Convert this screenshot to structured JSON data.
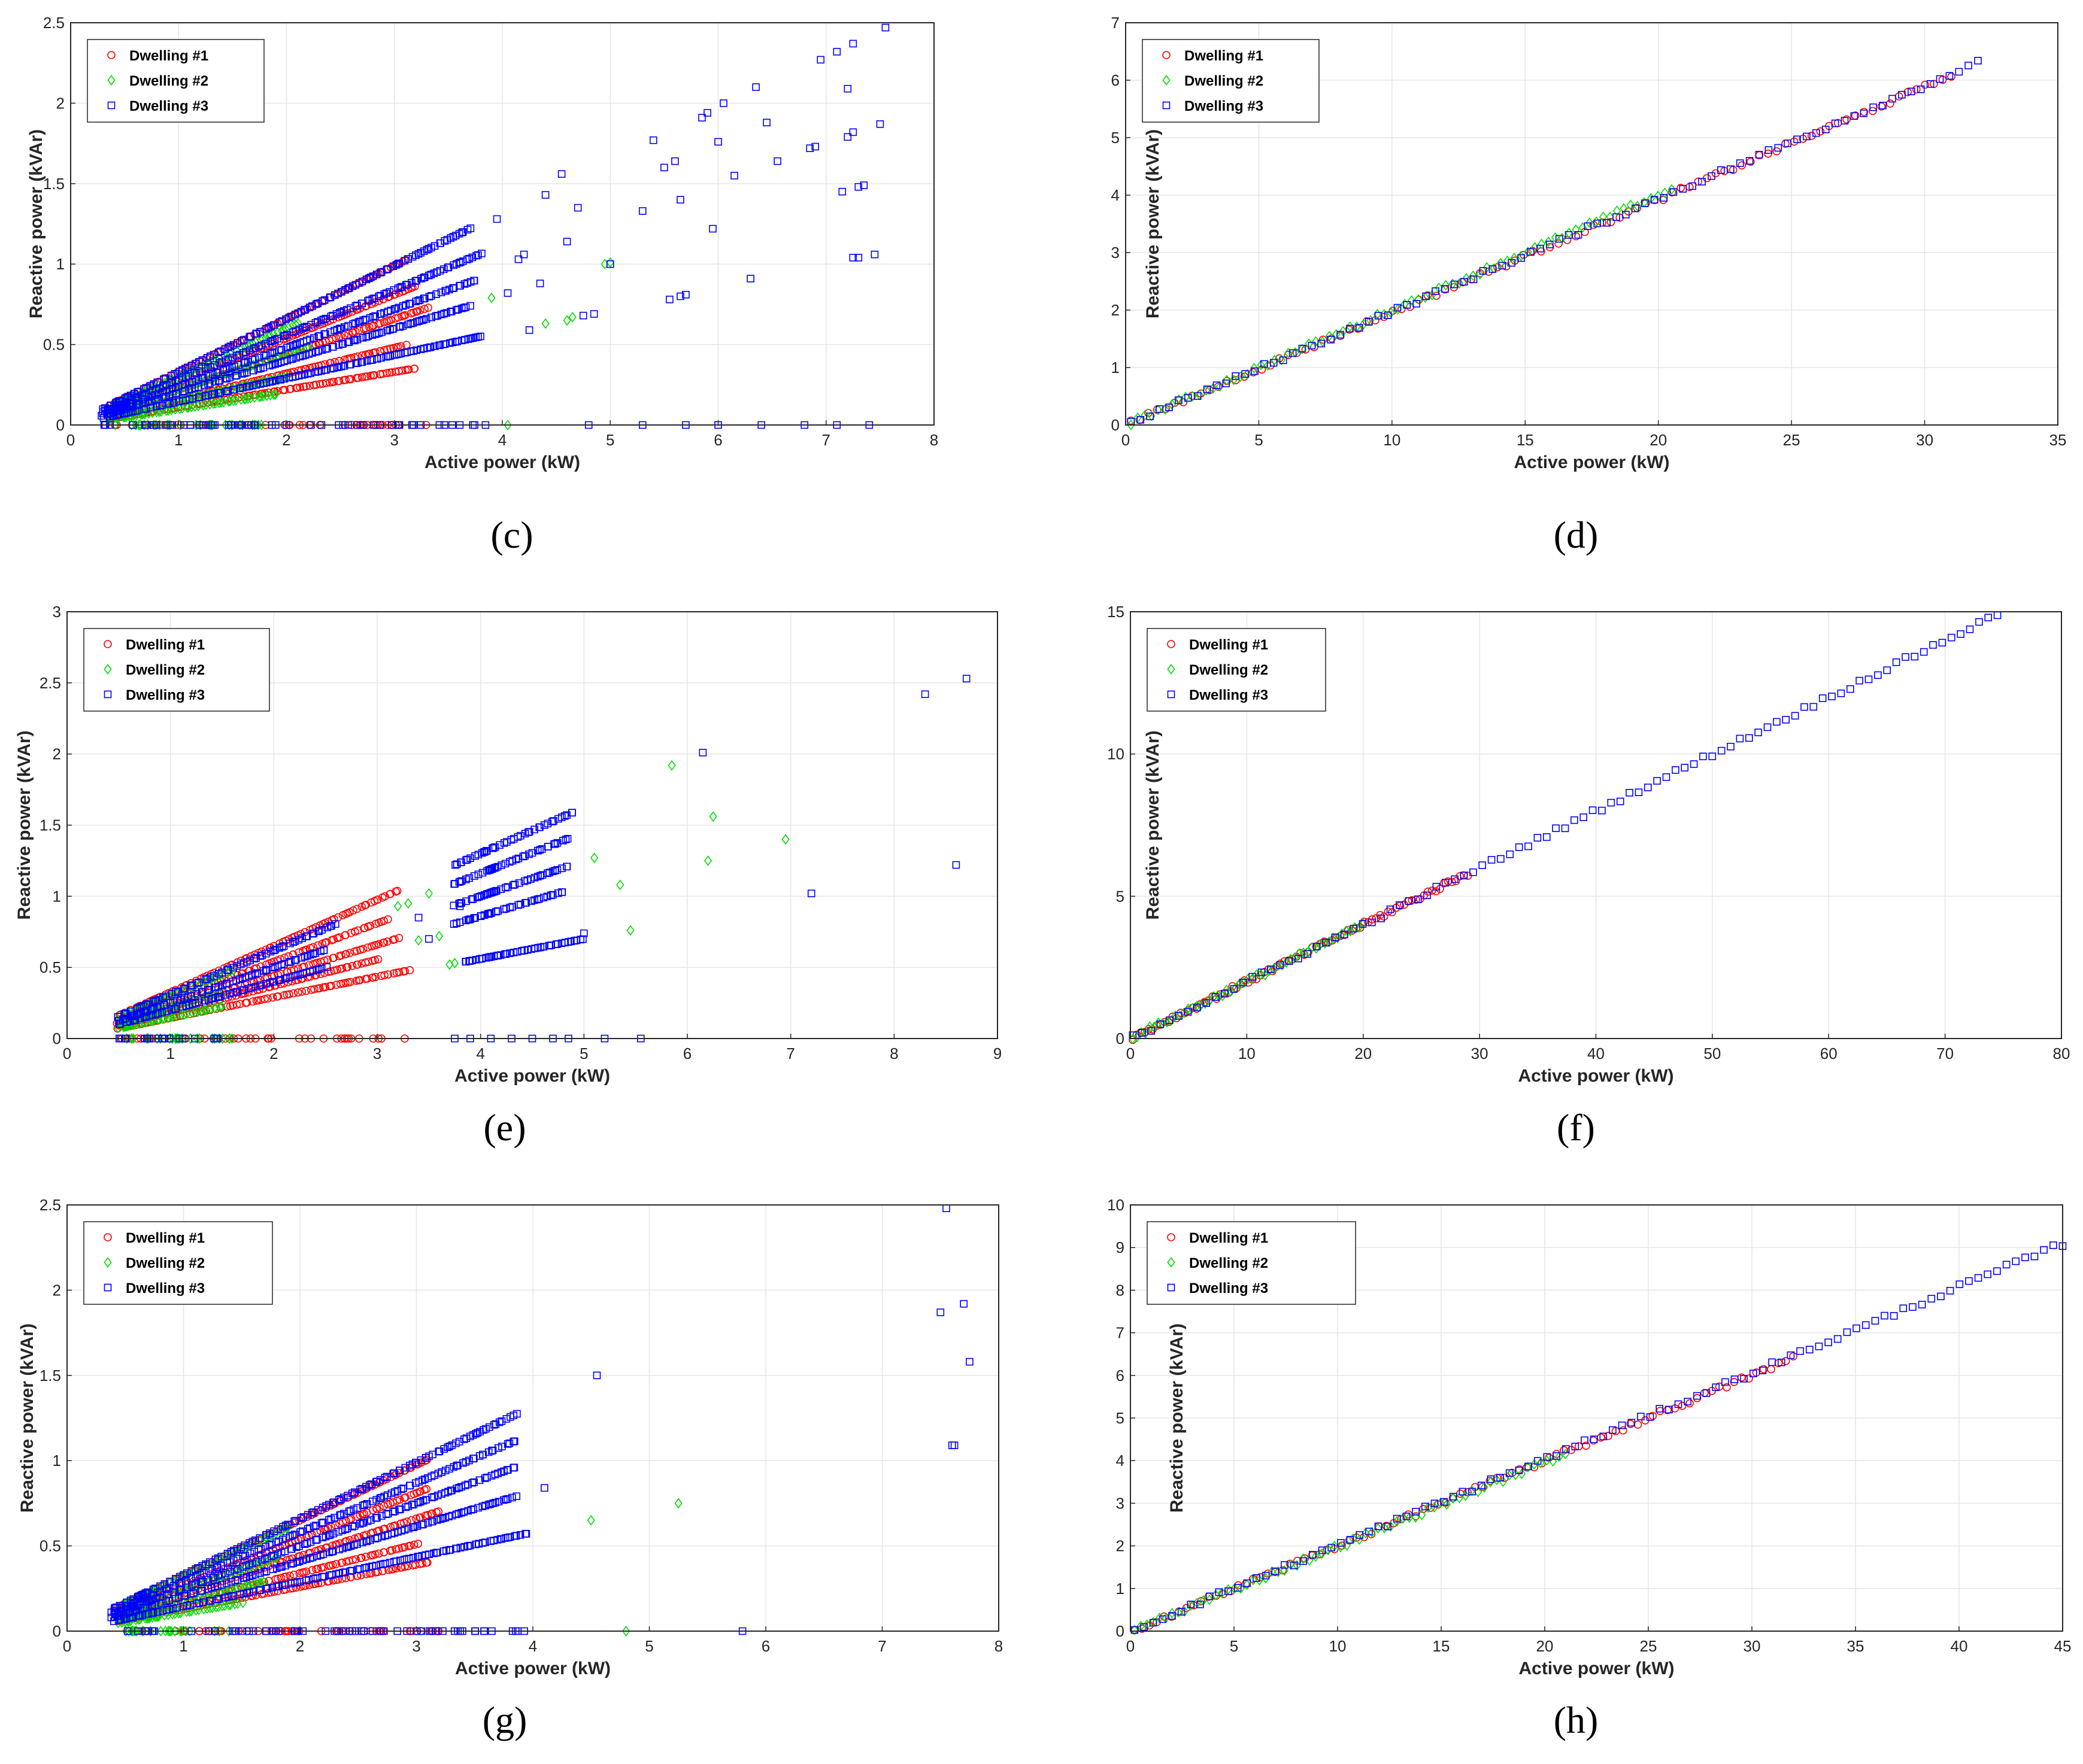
{
  "colors": {
    "s1": "#ff0000",
    "s2": "#00dd00",
    "s3": "#0000ff"
  },
  "chart_data": [
    {
      "id": "c",
      "type": "scatter",
      "panel_label": "(c)",
      "xlim": [
        0,
        8
      ],
      "ylim": [
        0,
        2.5
      ],
      "xticks": [
        "0",
        "1",
        "2",
        "3",
        "4",
        "5",
        "6",
        "7",
        "8"
      ],
      "yticks": [
        "0",
        "0.5",
        "1",
        "1.5",
        "2",
        "2.5"
      ],
      "xlabel": "Active power (kW)",
      "ylabel": "Reactive power (kVAr)",
      "legend": [
        "Dwelling #1",
        "Dwelling #2",
        "Dwelling #3"
      ],
      "legend_position": "top-left",
      "series": [
        {
          "name": "Dwelling #1",
          "rays": [
            {
              "x0": 0.35,
              "x1": 3.1,
              "slope": 0.33
            },
            {
              "x0": 0.35,
              "x1": 3.2,
              "slope": 0.27
            },
            {
              "x0": 0.35,
              "x1": 3.3,
              "slope": 0.22
            },
            {
              "x0": 0.35,
              "x1": 3.1,
              "slope": 0.16
            },
            {
              "x0": 0.35,
              "x1": 3.2,
              "slope": 0.11
            }
          ],
          "zero": {
            "x0": 0.35,
            "x1": 3.3
          },
          "extra": []
        },
        {
          "name": "Dwelling #2",
          "rays": [
            {
              "x0": 0.35,
              "x1": 2.1,
              "slope": 0.3
            },
            {
              "x0": 0.35,
              "x1": 2.2,
              "slope": 0.22
            },
            {
              "x0": 0.35,
              "x1": 2.0,
              "slope": 0.15
            },
            {
              "x0": 0.35,
              "x1": 1.9,
              "slope": 0.1
            }
          ],
          "zero": {
            "x0": 0.35,
            "x1": 1.8
          },
          "extra": [
            [
              3.9,
              0.79
            ],
            [
              4.4,
              0.63
            ],
            [
              4.6,
              0.65
            ],
            [
              4.65,
              0.67
            ],
            [
              4.95,
              1.0
            ],
            [
              5.0,
              1.01
            ],
            [
              4.05,
              0.0
            ]
          ]
        },
        {
          "name": "Dwelling #3",
          "rays": [
            {
              "x0": 0.3,
              "x1": 3.7,
              "slope": 0.33
            },
            {
              "x0": 0.3,
              "x1": 3.8,
              "slope": 0.28
            },
            {
              "x0": 0.3,
              "x1": 3.75,
              "slope": 0.24
            },
            {
              "x0": 0.3,
              "x1": 3.7,
              "slope": 0.2
            },
            {
              "x0": 0.3,
              "x1": 3.8,
              "slope": 0.145
            }
          ],
          "zero": {
            "x0": 0.3,
            "x1": 3.9
          },
          "extra": [
            [
              3.95,
              1.28
            ],
            [
              4.05,
              0.82
            ],
            [
              4.15,
              1.03
            ],
            [
              4.2,
              1.06
            ],
            [
              4.25,
              0.59
            ],
            [
              4.35,
              0.88
            ],
            [
              4.4,
              1.43
            ],
            [
              4.55,
              1.56
            ],
            [
              4.6,
              1.14
            ],
            [
              4.7,
              1.35
            ],
            [
              4.75,
              0.68
            ],
            [
              4.85,
              0.69
            ],
            [
              5.0,
              1.0
            ],
            [
              5.3,
              1.33
            ],
            [
              5.4,
              1.77
            ],
            [
              5.5,
              1.6
            ],
            [
              5.55,
              0.78
            ],
            [
              5.6,
              1.64
            ],
            [
              5.65,
              0.8
            ],
            [
              5.7,
              0.81
            ],
            [
              5.65,
              1.4
            ],
            [
              5.85,
              1.91
            ],
            [
              5.9,
              1.94
            ],
            [
              5.95,
              1.22
            ],
            [
              6.0,
              1.76
            ],
            [
              6.05,
              2.0
            ],
            [
              6.15,
              1.55
            ],
            [
              6.3,
              0.91
            ],
            [
              6.35,
              2.1
            ],
            [
              6.45,
              1.88
            ],
            [
              6.55,
              1.64
            ],
            [
              6.85,
              1.72
            ],
            [
              6.9,
              1.73
            ],
            [
              6.95,
              2.27
            ],
            [
              7.1,
              2.32
            ],
            [
              7.15,
              1.45
            ],
            [
              7.2,
              1.79
            ],
            [
              7.25,
              1.82
            ],
            [
              7.3,
              1.48
            ],
            [
              7.35,
              1.49
            ],
            [
              7.45,
              1.06
            ],
            [
              7.5,
              1.87
            ],
            [
              7.55,
              2.47
            ],
            [
              7.2,
              2.09
            ],
            [
              7.25,
              2.37
            ],
            [
              7.25,
              1.04
            ],
            [
              7.3,
              1.04
            ],
            [
              4.8,
              0.0
            ],
            [
              5.3,
              0.0
            ],
            [
              5.7,
              0.0
            ],
            [
              6.0,
              0.0
            ],
            [
              6.4,
              0.0
            ],
            [
              6.8,
              0.0
            ],
            [
              7.1,
              0.0
            ],
            [
              7.4,
              0.0
            ]
          ]
        }
      ]
    },
    {
      "id": "d",
      "type": "scatter",
      "panel_label": "(d)",
      "xlim": [
        0,
        35
      ],
      "ylim": [
        0,
        7
      ],
      "xticks": [
        "0",
        "5",
        "10",
        "15",
        "20",
        "25",
        "30",
        "35"
      ],
      "yticks": [
        "0",
        "1",
        "2",
        "3",
        "4",
        "5",
        "6",
        "7"
      ],
      "xlabel": "Active power (kW)",
      "ylabel": "Reactive power (kVAr)",
      "legend": [
        "Dwelling #1",
        "Dwelling #2",
        "Dwelling #3"
      ],
      "legend_position": "top-left",
      "series": [
        {
          "name": "Dwelling #1",
          "line": {
            "x0": 0.2,
            "x1": 31,
            "slope": 0.196,
            "n": 95
          },
          "extra": []
        },
        {
          "name": "Dwelling #2",
          "line": {
            "x0": 0.2,
            "x1": 20.5,
            "slope": 0.2,
            "n": 80
          },
          "extra": []
        },
        {
          "name": "Dwelling #3",
          "line": {
            "x0": 0.2,
            "x1": 32,
            "slope": 0.197,
            "n": 90
          },
          "extra": []
        }
      ]
    },
    {
      "id": "e",
      "type": "scatter",
      "panel_label": "(e)",
      "xlim": [
        0,
        9
      ],
      "ylim": [
        0,
        3
      ],
      "xticks": [
        "0",
        "1",
        "2",
        "3",
        "4",
        "5",
        "6",
        "7",
        "8",
        "9"
      ],
      "yticks": [
        "0",
        "0.5",
        "1",
        "1.5",
        "2",
        "2.5",
        "3"
      ],
      "xlabel": "Active power (kW)",
      "ylabel": "Reactive power (kVAr)",
      "legend": [
        "Dwelling #1",
        "Dwelling #2",
        "Dwelling #3"
      ],
      "legend_position": "top-left",
      "series": [
        {
          "name": "Dwelling #1",
          "rays": [
            {
              "x0": 0.5,
              "x1": 3.2,
              "slope": 0.325
            },
            {
              "x0": 0.5,
              "x1": 3.1,
              "slope": 0.27
            },
            {
              "x0": 0.5,
              "x1": 3.2,
              "slope": 0.22
            },
            {
              "x0": 0.5,
              "x1": 3.0,
              "slope": 0.185
            },
            {
              "x0": 0.5,
              "x1": 3.3,
              "slope": 0.145
            }
          ],
          "zero": {
            "x0": 0.5,
            "x1": 3.3
          },
          "extra": []
        },
        {
          "name": "Dwelling #2",
          "rays": [
            {
              "x0": 0.5,
              "x1": 1.6,
              "slope": 0.3
            },
            {
              "x0": 0.5,
              "x1": 1.5,
              "slope": 0.22
            },
            {
              "x0": 0.5,
              "x1": 1.5,
              "slope": 0.15
            }
          ],
          "zero": {
            "x0": 0.5,
            "x1": 1.6
          },
          "extra": [
            [
              3.2,
              0.93
            ],
            [
              3.3,
              0.95
            ],
            [
              3.4,
              0.69
            ],
            [
              3.5,
              1.02
            ],
            [
              3.6,
              0.72
            ],
            [
              3.7,
              0.52
            ],
            [
              3.75,
              0.53
            ],
            [
              5.1,
              1.27
            ],
            [
              5.35,
              1.08
            ],
            [
              5.45,
              0.76
            ],
            [
              5.85,
              1.92
            ],
            [
              6.2,
              1.25
            ],
            [
              6.25,
              1.56
            ],
            [
              6.95,
              1.4
            ]
          ]
        },
        {
          "name": "Dwelling #3",
          "rays": [
            {
              "x0": 0.5,
              "x1": 2.6,
              "slope": 0.31
            },
            {
              "x0": 0.5,
              "x1": 2.5,
              "slope": 0.25
            },
            {
              "x0": 0.5,
              "x1": 2.5,
              "slope": 0.2
            },
            {
              "x0": 3.75,
              "x1": 4.9,
              "slope": 0.325
            },
            {
              "x0": 3.75,
              "x1": 4.85,
              "slope": 0.29
            },
            {
              "x0": 3.75,
              "x1": 4.85,
              "slope": 0.25
            },
            {
              "x0": 3.75,
              "x1": 4.8,
              "slope": 0.215
            },
            {
              "x0": 3.85,
              "x1": 5.0,
              "slope": 0.14
            }
          ],
          "zero": {
            "x0": 0.5,
            "x1": 1.5
          },
          "extra": [
            [
              3.4,
              0.85
            ],
            [
              3.5,
              0.7
            ],
            [
              3.8,
              0.93
            ],
            [
              5.0,
              0.74
            ],
            [
              6.15,
              2.01
            ],
            [
              7.2,
              1.02
            ],
            [
              8.3,
              2.42
            ],
            [
              8.6,
              1.22
            ],
            [
              8.7,
              2.53
            ],
            [
              3.75,
              0.0
            ],
            [
              3.9,
              0.0
            ],
            [
              4.1,
              0.0
            ],
            [
              4.3,
              0.0
            ],
            [
              4.5,
              0.0
            ],
            [
              4.7,
              0.0
            ],
            [
              4.85,
              0.0
            ],
            [
              5.2,
              0.0
            ],
            [
              5.55,
              0.0
            ]
          ]
        }
      ]
    },
    {
      "id": "f",
      "type": "scatter",
      "panel_label": "(f)",
      "xlim": [
        0,
        80
      ],
      "ylim": [
        0,
        15
      ],
      "xticks": [
        "0",
        "10",
        "20",
        "30",
        "40",
        "50",
        "60",
        "70",
        "80"
      ],
      "yticks": [
        "0",
        "5",
        "10",
        "15"
      ],
      "xlabel": "Active power (kW)",
      "ylabel": "Reactive power (kVAr)",
      "legend": [
        "Dwelling #1",
        "Dwelling #2",
        "Dwelling #3"
      ],
      "legend_position": "top-left",
      "series": [
        {
          "name": "Dwelling #1",
          "line": {
            "x0": 0.2,
            "x1": 29,
            "slope": 0.2,
            "n": 85
          },
          "extra": []
        },
        {
          "name": "Dwelling #2",
          "line": {
            "x0": 0.2,
            "x1": 20,
            "slope": 0.2,
            "n": 55
          },
          "extra": []
        },
        {
          "name": "Dwelling #3",
          "line": {
            "x0": 0.2,
            "x1": 74.5,
            "slope": 0.2,
            "n": 95
          },
          "extra": []
        }
      ]
    },
    {
      "id": "g",
      "type": "scatter",
      "panel_label": "(g)",
      "xlim": [
        0,
        8
      ],
      "ylim": [
        0,
        2.5
      ],
      "xticks": [
        "0",
        "1",
        "2",
        "3",
        "4",
        "5",
        "6",
        "7",
        "8"
      ],
      "yticks": [
        "0",
        "0.5",
        "1",
        "1.5",
        "2",
        "2.5"
      ],
      "xlabel": "Active power (kW)",
      "ylabel": "Reactive power (kVAr)",
      "legend": [
        "Dwelling #1",
        "Dwelling #2",
        "Dwelling #3"
      ],
      "legend_position": "top-left",
      "series": [
        {
          "name": "Dwelling #1",
          "rays": [
            {
              "x0": 0.45,
              "x1": 3.1,
              "slope": 0.325
            },
            {
              "x0": 0.45,
              "x1": 3.1,
              "slope": 0.27
            },
            {
              "x0": 0.45,
              "x1": 3.2,
              "slope": 0.22
            },
            {
              "x0": 0.45,
              "x1": 3.0,
              "slope": 0.17
            },
            {
              "x0": 0.45,
              "x1": 3.1,
              "slope": 0.13
            }
          ],
          "zero": {
            "x0": 0.45,
            "x1": 3.2
          },
          "extra": []
        },
        {
          "name": "Dwelling #2",
          "rays": [
            {
              "x0": 0.45,
              "x1": 1.9,
              "slope": 0.32
            },
            {
              "x0": 0.45,
              "x1": 1.8,
              "slope": 0.24
            },
            {
              "x0": 0.45,
              "x1": 1.7,
              "slope": 0.17
            },
            {
              "x0": 0.45,
              "x1": 1.5,
              "slope": 0.11
            }
          ],
          "zero": {
            "x0": 0.45,
            "x1": 1.5
          },
          "extra": [
            [
              4.5,
              0.65
            ],
            [
              5.25,
              0.75
            ],
            [
              4.8,
              0.0
            ]
          ]
        },
        {
          "name": "Dwelling #3",
          "rays": [
            {
              "x0": 0.4,
              "x1": 3.85,
              "slope": 0.33
            },
            {
              "x0": 0.4,
              "x1": 3.85,
              "slope": 0.29
            },
            {
              "x0": 0.4,
              "x1": 3.85,
              "slope": 0.25
            },
            {
              "x0": 0.4,
              "x1": 3.85,
              "slope": 0.205
            },
            {
              "x0": 0.4,
              "x1": 3.95,
              "slope": 0.145
            }
          ],
          "zero": {
            "x0": 0.4,
            "x1": 4.0
          },
          "extra": [
            [
              4.1,
              0.84
            ],
            [
              4.55,
              1.5
            ],
            [
              7.5,
              1.87
            ],
            [
              7.55,
              2.48
            ],
            [
              7.6,
              1.09
            ],
            [
              7.62,
              1.09
            ],
            [
              7.7,
              1.92
            ],
            [
              7.75,
              1.58
            ],
            [
              5.8,
              0.0
            ],
            [
              0.38,
              0.11
            ],
            [
              0.38,
              0.08
            ]
          ]
        }
      ]
    },
    {
      "id": "h",
      "type": "scatter",
      "panel_label": "(h)",
      "xlim": [
        0,
        45
      ],
      "ylim": [
        0,
        10
      ],
      "xticks": [
        "0",
        "5",
        "10",
        "15",
        "20",
        "25",
        "30",
        "35",
        "40",
        "45"
      ],
      "yticks": [
        "0",
        "1",
        "2",
        "3",
        "4",
        "5",
        "6",
        "7",
        "8",
        "9",
        "10"
      ],
      "xlabel": "Active power (kW)",
      "ylabel": "Reactive power (kVAr)",
      "legend": [
        "Dwelling #1",
        "Dwelling #2",
        "Dwelling #3"
      ],
      "legend_position": "top-left",
      "series": [
        {
          "name": "Dwelling #1",
          "line": {
            "x0": 0.2,
            "x1": 32,
            "slope": 0.2,
            "n": 90
          },
          "extra": []
        },
        {
          "name": "Dwelling #2",
          "line": {
            "x0": 0.2,
            "x1": 21,
            "slope": 0.198,
            "n": 70
          },
          "extra": []
        },
        {
          "name": "Dwelling #3",
          "line": {
            "x0": 0.2,
            "x1": 45,
            "slope": 0.202,
            "n": 100
          },
          "extra": []
        }
      ]
    }
  ]
}
